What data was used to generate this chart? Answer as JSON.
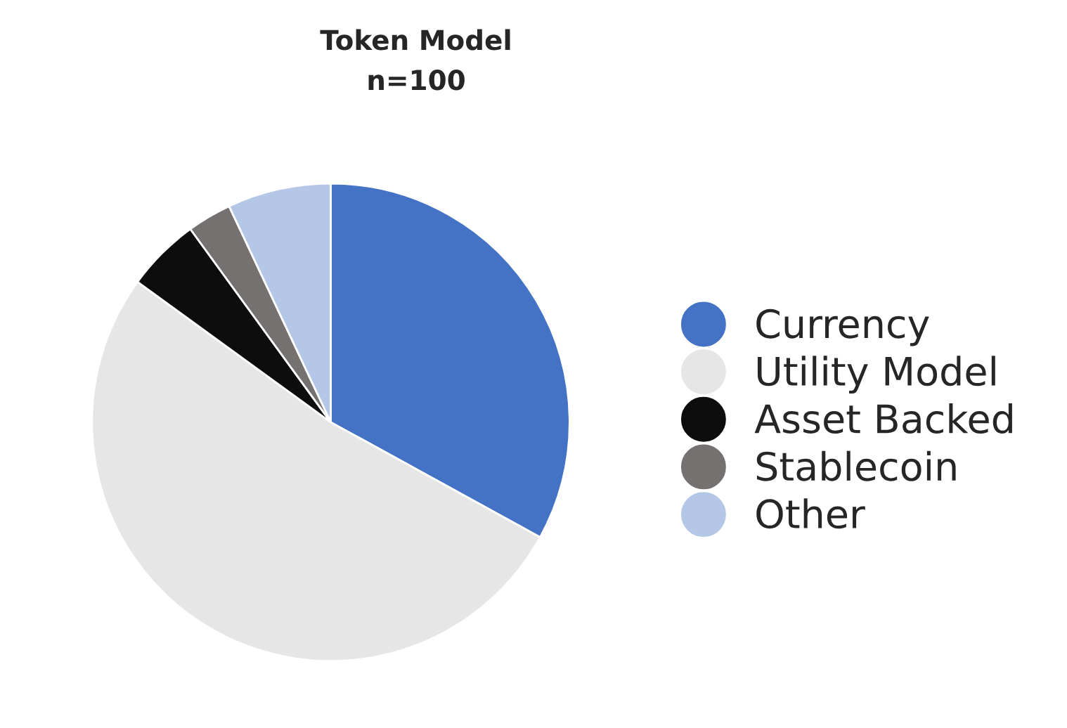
{
  "chart_data": {
    "type": "pie",
    "title": "Token Model",
    "subtitle": "n=100",
    "categories": [
      "Currency",
      "Utility Model",
      "Asset Backed",
      "Stablecoin",
      "Other"
    ],
    "values": [
      33,
      52,
      5,
      3,
      7
    ],
    "colors": [
      "#4472c4",
      "#e6e6e6",
      "#0d0d0d",
      "#767171",
      "#b4c7e7"
    ],
    "legend": "right"
  }
}
